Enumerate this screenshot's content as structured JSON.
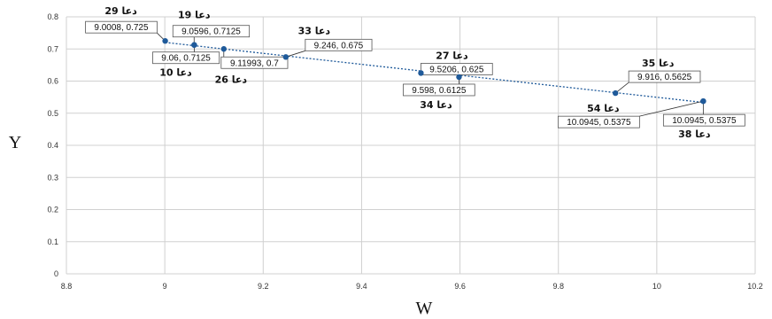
{
  "chart_data": {
    "type": "scatter",
    "title": "",
    "xlabel": "W",
    "ylabel": "Y",
    "xlim": [
      8.8,
      10.2
    ],
    "ylim": [
      0,
      0.8
    ],
    "xticks": [
      "8.8",
      "9",
      "9.2",
      "9.4",
      "9.6",
      "9.8",
      "10",
      "10.2"
    ],
    "yticks": [
      "0",
      "0.1",
      "0.2",
      "0.3",
      "0.4",
      "0.5",
      "0.6",
      "0.7",
      "0.8"
    ],
    "grid": true,
    "trendline": true,
    "point_color": "#1f5a9a",
    "trend_color": "#1f5a9a",
    "points": [
      {
        "x": 9.0008,
        "y": 0.725,
        "label": "9.0008, 0.725",
        "name": "دعا 29"
      },
      {
        "x": 9.0596,
        "y": 0.7125,
        "label": "9.0596, 0.7125",
        "name": "دعا 19"
      },
      {
        "x": 9.06,
        "y": 0.7125,
        "label": "9.06, 0.7125",
        "name": "دعا 10"
      },
      {
        "x": 9.11993,
        "y": 0.7,
        "label": "9.11993, 0.7",
        "name": "دعا 26"
      },
      {
        "x": 9.246,
        "y": 0.675,
        "label": "9.246, 0.675",
        "name": "دعا 33"
      },
      {
        "x": 9.5206,
        "y": 0.625,
        "label": "9.5206, 0.625",
        "name": "دعا 27"
      },
      {
        "x": 9.598,
        "y": 0.6125,
        "label": "9.598, 0.6125",
        "name": "دعا 34"
      },
      {
        "x": 9.916,
        "y": 0.5625,
        "label": "9.916, 0.5625",
        "name": "دعا 35"
      },
      {
        "x": 10.0945,
        "y": 0.5375,
        "label": "10.0945, 0.5375",
        "name": "دعا 54"
      },
      {
        "x": 10.0945,
        "y": 0.5375,
        "label": "10.0945, 0.5375",
        "name": "دعا 38"
      }
    ]
  }
}
